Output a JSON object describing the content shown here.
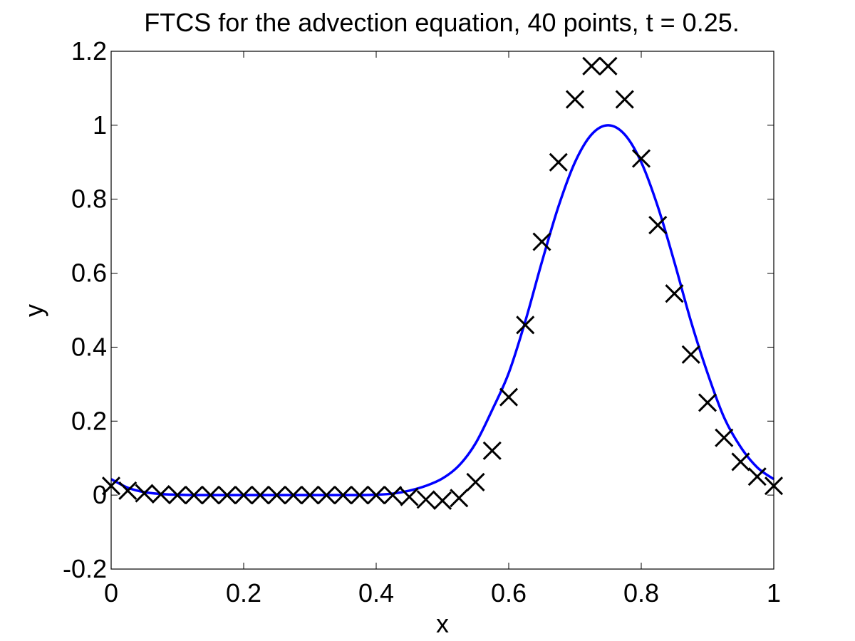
{
  "chart_data": {
    "type": "line",
    "title": "FTCS for the advection equation, 40 points, t = 0.25.",
    "xlabel": "x",
    "ylabel": "y",
    "xlim": [
      0,
      1
    ],
    "ylim": [
      -0.2,
      1.2
    ],
    "x_ticks": [
      0,
      0.2,
      0.4,
      0.6,
      0.8,
      1
    ],
    "x_tick_labels": [
      "0",
      "0.2",
      "0.4",
      "0.6",
      "0.8",
      "1"
    ],
    "y_ticks": [
      -0.2,
      0,
      0.2,
      0.4,
      0.6,
      0.8,
      1,
      1.2
    ],
    "y_tick_labels": [
      "-0.2",
      "0",
      "0.2",
      "0.4",
      "0.6",
      "0.8",
      "1",
      "1.2"
    ],
    "grid": false,
    "legend": "none",
    "series": [
      {
        "style": "line",
        "color": "#0000ff",
        "x": [
          0,
          0.025,
          0.05,
          0.075,
          0.1,
          0.125,
          0.15,
          0.175,
          0.2,
          0.225,
          0.25,
          0.275,
          0.3,
          0.325,
          0.35,
          0.375,
          0.4,
          0.425,
          0.45,
          0.475,
          0.5,
          0.525,
          0.55,
          0.575,
          0.6,
          0.625,
          0.65,
          0.675,
          0.7,
          0.725,
          0.75,
          0.775,
          0.8,
          0.825,
          0.85,
          0.875,
          0.9,
          0.925,
          0.95,
          0.975,
          1.0
        ],
        "y": [
          0.043,
          0.02,
          0.008,
          0.003,
          0.001,
          0.0,
          0.0,
          0.0,
          0.0,
          0.0,
          0.0,
          0.0,
          0.0,
          0.0,
          0.0,
          0.0,
          0.001,
          0.004,
          0.012,
          0.025,
          0.045,
          0.08,
          0.14,
          0.23,
          0.33,
          0.47,
          0.63,
          0.78,
          0.9,
          0.975,
          1.0,
          0.975,
          0.9,
          0.78,
          0.63,
          0.47,
          0.33,
          0.21,
          0.13,
          0.075,
          0.043
        ]
      },
      {
        "style": "markers",
        "marker": "x",
        "color": "#000000",
        "x": [
          0,
          0.025,
          0.05,
          0.075,
          0.1,
          0.125,
          0.15,
          0.175,
          0.2,
          0.225,
          0.25,
          0.275,
          0.3,
          0.325,
          0.35,
          0.375,
          0.4,
          0.425,
          0.45,
          0.475,
          0.5,
          0.525,
          0.55,
          0.575,
          0.6,
          0.625,
          0.65,
          0.675,
          0.7,
          0.725,
          0.75,
          0.775,
          0.8,
          0.825,
          0.85,
          0.875,
          0.9,
          0.925,
          0.95,
          0.975,
          1.0
        ],
        "y": [
          0.025,
          0.012,
          0.005,
          0.002,
          0.0,
          0.0,
          0.0,
          0.0,
          0.0,
          0.0,
          0.0,
          0.0,
          0.0,
          0.0,
          0.0,
          0.0,
          0.0,
          0.0,
          -0.005,
          -0.012,
          -0.015,
          -0.008,
          0.035,
          0.12,
          0.265,
          0.46,
          0.685,
          0.9,
          1.07,
          1.16,
          1.16,
          1.07,
          0.91,
          0.73,
          0.545,
          0.38,
          0.25,
          0.155,
          0.09,
          0.05,
          0.025
        ]
      }
    ]
  }
}
